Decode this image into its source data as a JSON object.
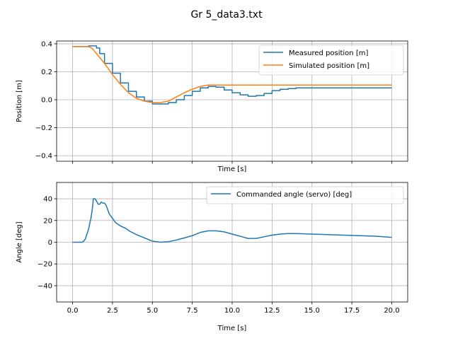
{
  "title": "Gr 5_data3.txt",
  "chart_data": [
    {
      "type": "line",
      "xlabel": "Time [s]",
      "ylabel": "Position [m]",
      "xlim": [
        -1,
        21
      ],
      "ylim": [
        -0.44,
        0.42
      ],
      "xticks": [
        0.0,
        2.5,
        5.0,
        7.5,
        10.0,
        12.5,
        15.0,
        17.5,
        20.0
      ],
      "xtick_labels_visible": false,
      "yticks": [
        -0.4,
        -0.2,
        0.0,
        0.2,
        0.4
      ],
      "ytick_labels": [
        "−0.4",
        "−0.2",
        "0.0",
        "0.2",
        "0.4"
      ],
      "grid": true,
      "legend_position": "top-right",
      "series": [
        {
          "name": "Measured position [m]",
          "color": "#1f77b4",
          "step": true,
          "x": [
            0,
            0.5,
            1.0,
            1.2,
            1.5,
            1.7,
            2.0,
            2.5,
            3.0,
            3.5,
            4.0,
            4.5,
            5.0,
            5.5,
            6.0,
            6.5,
            7.0,
            7.5,
            8.0,
            8.5,
            9.0,
            9.5,
            10.0,
            10.5,
            11.0,
            11.5,
            12.0,
            12.5,
            13.0,
            13.5,
            14.0,
            15.0,
            16.0,
            17.0,
            18.0,
            19.0,
            20.0
          ],
          "y": [
            0.38,
            0.38,
            0.385,
            0.385,
            0.37,
            0.33,
            0.26,
            0.19,
            0.12,
            0.06,
            0.02,
            -0.01,
            -0.03,
            -0.03,
            -0.02,
            0.0,
            0.03,
            0.06,
            0.085,
            0.095,
            0.09,
            0.07,
            0.05,
            0.035,
            0.025,
            0.03,
            0.045,
            0.065,
            0.075,
            0.08,
            0.085,
            0.085,
            0.085,
            0.085,
            0.085,
            0.085,
            0.085
          ]
        },
        {
          "name": "Simulated position [m]",
          "color": "#ff7f0e",
          "step": false,
          "x": [
            0,
            0.5,
            1.0,
            1.2,
            1.5,
            2.0,
            2.5,
            3.0,
            3.5,
            4.0,
            4.5,
            5.0,
            5.5,
            6.0,
            6.5,
            7.0,
            7.5,
            8.0,
            8.5,
            9.0,
            9.5,
            10.0,
            11.0,
            12.0,
            14.0,
            16.0,
            18.0,
            20.0
          ],
          "y": [
            0.38,
            0.38,
            0.38,
            0.37,
            0.33,
            0.26,
            0.18,
            0.11,
            0.05,
            0.01,
            -0.01,
            -0.02,
            -0.02,
            -0.01,
            0.02,
            0.05,
            0.075,
            0.095,
            0.105,
            0.105,
            0.105,
            0.105,
            0.105,
            0.105,
            0.105,
            0.105,
            0.105,
            0.105
          ]
        }
      ]
    },
    {
      "type": "line",
      "xlabel": "Time [s]",
      "ylabel": "Angle [deg]",
      "xlim": [
        -1,
        21
      ],
      "ylim": [
        -55,
        55
      ],
      "xticks": [
        0.0,
        2.5,
        5.0,
        7.5,
        10.0,
        12.5,
        15.0,
        17.5,
        20.0
      ],
      "xtick_labels": [
        "0.0",
        "2.5",
        "5.0",
        "7.5",
        "10.0",
        "12.5",
        "15.0",
        "17.5",
        "20.0"
      ],
      "yticks": [
        -40,
        -20,
        0,
        20,
        40
      ],
      "ytick_labels": [
        "−40",
        "−20",
        "0",
        "20",
        "40"
      ],
      "grid": true,
      "legend_position": "top-right",
      "series": [
        {
          "name": "Commanded angle (servo) [deg]",
          "color": "#1f77b4",
          "step": false,
          "x": [
            0,
            0.6,
            0.7,
            0.8,
            1.0,
            1.15,
            1.25,
            1.3,
            1.4,
            1.5,
            1.6,
            1.7,
            1.8,
            1.9,
            2.0,
            2.1,
            2.2,
            2.3,
            2.5,
            2.7,
            3.0,
            3.3,
            3.6,
            4.0,
            4.5,
            5.0,
            5.5,
            6.0,
            6.5,
            7.0,
            7.5,
            8.0,
            8.5,
            9.0,
            9.5,
            10.0,
            10.5,
            11.0,
            11.5,
            12.0,
            12.5,
            13.0,
            13.5,
            14.0,
            15.0,
            16.0,
            17.0,
            18.0,
            19.0,
            20.0
          ],
          "y": [
            0,
            0,
            1,
            3,
            12,
            22,
            32,
            40,
            40,
            38,
            35,
            35,
            37,
            36,
            36,
            34,
            30,
            26,
            22,
            18,
            15,
            13,
            10,
            7,
            4,
            1,
            0,
            0.5,
            2,
            4,
            6,
            9,
            10.5,
            10.5,
            9.5,
            7.5,
            5.5,
            3.5,
            3.5,
            5,
            6.5,
            7.5,
            8,
            8,
            7.5,
            7,
            6.5,
            6,
            5.5,
            4.5
          ]
        }
      ]
    }
  ]
}
